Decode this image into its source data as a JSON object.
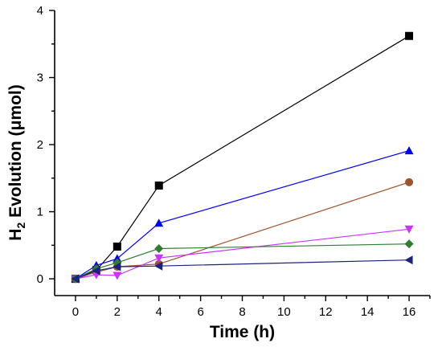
{
  "chart_data": {
    "type": "line",
    "xlabel": "Time (h)",
    "ylabel_main": "H",
    "ylabel_sub": "2",
    "ylabel_rest": " Evolution (μmol)",
    "xlim": [
      -1,
      17
    ],
    "ylim": [
      -0.25,
      4
    ],
    "xticks": [
      "0",
      "2",
      "4",
      "6",
      "8",
      "10",
      "12",
      "14",
      "16"
    ],
    "yticks": [
      "0",
      "1",
      "2",
      "3",
      "4"
    ],
    "grid": false,
    "legend": "none",
    "series": [
      {
        "color": "#000000",
        "marker": "square",
        "x": [
          0,
          1,
          2,
          4,
          16
        ],
        "y": [
          0,
          0.13,
          0.48,
          1.39,
          3.62
        ]
      },
      {
        "color": "#0000ff",
        "marker": "triangle-up",
        "x": [
          0,
          1,
          2,
          4,
          16
        ],
        "y": [
          0,
          0.2,
          0.3,
          0.83,
          1.91
        ]
      },
      {
        "color": "#a0522d",
        "marker": "circle",
        "x": [
          0,
          1,
          2,
          4,
          16
        ],
        "y": [
          0,
          0.1,
          0.18,
          0.22,
          1.44
        ]
      },
      {
        "color": "#cc33ff",
        "marker": "triangle-down",
        "x": [
          0,
          1,
          2,
          4,
          16
        ],
        "y": [
          0,
          0.06,
          0.05,
          0.31,
          0.74
        ]
      },
      {
        "color": "#2e7d32",
        "marker": "diamond",
        "x": [
          0,
          1,
          2,
          4,
          16
        ],
        "y": [
          0,
          0.15,
          0.24,
          0.45,
          0.52
        ]
      },
      {
        "color": "#1a237e",
        "marker": "triangle-left",
        "x": [
          0,
          1,
          2,
          4,
          16
        ],
        "y": [
          0,
          0.12,
          0.18,
          0.19,
          0.28
        ]
      }
    ]
  }
}
